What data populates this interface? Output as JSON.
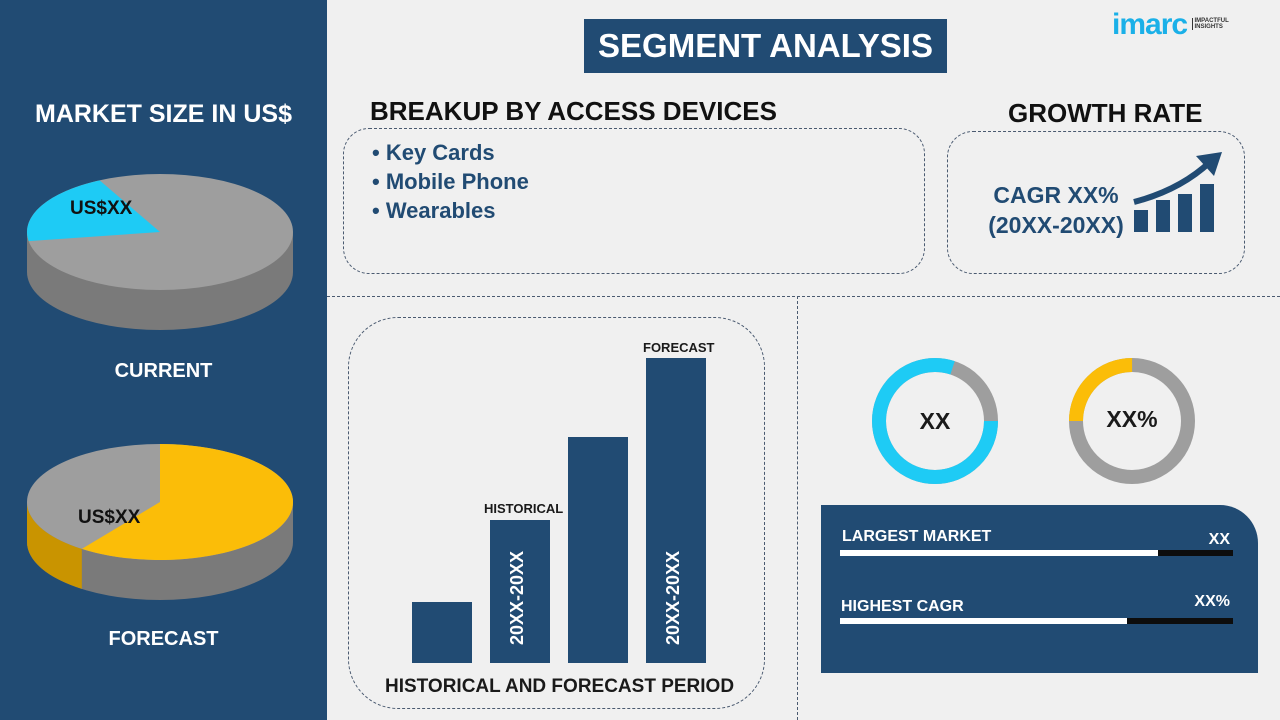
{
  "header": {
    "title": "SEGMENT ANALYSIS",
    "logo_text": "imarc",
    "logo_tagline": "IMPACTFUL INSIGHTS"
  },
  "market_size": {
    "title": "MARKET SIZE IN US$",
    "current": {
      "label": "CURRENT",
      "value": "US$XX",
      "highlight_share": 0.2,
      "highlight_color": "#1ecbf5"
    },
    "forecast": {
      "label": "FORECAST",
      "value": "US$XX",
      "highlight_share": 0.6,
      "highlight_color": "#fbbd08"
    },
    "base_color": "#9e9e9e"
  },
  "breakup": {
    "title": "BREAKUP BY ACCESS DEVICES",
    "items": [
      "Key Cards",
      "Mobile Phone",
      "Wearables"
    ]
  },
  "growth": {
    "title": "GROWTH RATE",
    "cagr": "CAGR XX%",
    "period": "(20XX-20XX)"
  },
  "period_chart": {
    "historical_label": "HISTORICAL",
    "forecast_label": "FORECAST",
    "historical_range": "20XX-20XX",
    "forecast_range": "20XX-20XX",
    "x_label": "HISTORICAL AND FORECAST PERIOD",
    "bar_levels": [
      0.2,
      0.47,
      0.74,
      1.0
    ]
  },
  "donuts": [
    {
      "value": "XX",
      "share": 0.8,
      "color": "#1ecbf5"
    },
    {
      "value": "XX%",
      "share": 0.25,
      "color": "#fbbd08"
    }
  ],
  "stats": [
    {
      "label": "LARGEST MARKET",
      "value": "XX",
      "progress": 0.81
    },
    {
      "label": "HIGHEST CAGR",
      "value": "XX%",
      "progress": 0.73
    }
  ],
  "colors": {
    "navy": "#214b73",
    "cyan": "#1ecbf5",
    "yellow": "#fbbd08",
    "gray": "#9e9e9e"
  }
}
